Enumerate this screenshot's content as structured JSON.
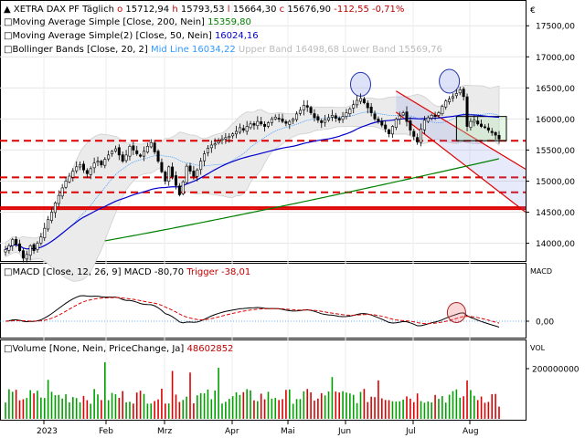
{
  "chart_data": [
    {
      "type": "candlestick",
      "panel": "price",
      "title": "XETRA DAX PF",
      "interval": "Täglich",
      "currency": "€",
      "ohlc_last": {
        "open_label": "o",
        "open": "15712,94",
        "high_label": "h",
        "high": "15793,53",
        "low_label": "l",
        "low": "15664,30",
        "close_label": "c",
        "close": "15676,90",
        "change": "-112,55",
        "change_pct": "-0,71%"
      },
      "legend": [
        {
          "name": "Moving Average Simple",
          "params": "[Close, 200, Nein]",
          "value": "15359,80",
          "color": "#008000"
        },
        {
          "name": "Moving Average Simple(2)",
          "params": "[Close, 50, Nein]",
          "value": "16024,16",
          "color": "#0000cc"
        },
        {
          "name": "Bollinger Bands",
          "params": "[Close, 20, 2]",
          "mid_label": "Mid Line",
          "mid": "16034,22",
          "upper_label": "Upper Band",
          "upper": "16498,68",
          "lower_label": "Lower Band",
          "lower": "15569,76",
          "color": "#3399ff"
        }
      ],
      "y_ticks": [
        "17500,00",
        "17000,00",
        "16500,00",
        "16000,00",
        "15500,00",
        "15000,00",
        "14500,00",
        "14000,00"
      ],
      "ylim": [
        13700,
        17900
      ],
      "x_labels": [
        "2023",
        "Feb",
        "Mrz",
        "Apr",
        "Mai",
        "Jun",
        "Jul",
        "Aug"
      ],
      "closes": [
        13900,
        13960,
        14060,
        13980,
        13880,
        13760,
        13820,
        13960,
        13880,
        14000,
        14100,
        14240,
        14380,
        14500,
        14650,
        14770,
        14890,
        15000,
        15080,
        15160,
        15230,
        15260,
        15180,
        15120,
        15200,
        15290,
        15320,
        15260,
        15350,
        15420,
        15480,
        15520,
        15420,
        15320,
        15420,
        15560,
        15500,
        15440,
        15400,
        15480,
        15560,
        15620,
        15470,
        15320,
        15150,
        15000,
        15230,
        15070,
        14930,
        14780,
        14990,
        15240,
        15160,
        15080,
        15180,
        15320,
        15440,
        15530,
        15580,
        15600,
        15640,
        15680,
        15700,
        15720,
        15760,
        15800,
        15860,
        15820,
        15880,
        15920,
        15900,
        15960,
        15920,
        15880,
        15940,
        16000,
        16030,
        16000,
        15960,
        15930,
        15960,
        16000,
        16080,
        16140,
        16220,
        16190,
        16100,
        16020,
        15980,
        15940,
        15990,
        16020,
        16060,
        16010,
        15980,
        16040,
        16100,
        16160,
        16230,
        16300,
        16330,
        16260,
        16180,
        16100,
        16000,
        15960,
        15900,
        15840,
        15760,
        15880,
        16000,
        16050,
        16100,
        15960,
        15820,
        15720,
        15630,
        15840,
        15980,
        16020,
        16060,
        16040,
        16100,
        16200,
        16290,
        16320,
        16360,
        16410,
        16470,
        16360,
        15880,
        15960,
        15980,
        15920,
        15880,
        15860,
        15820,
        15780,
        15740,
        15677
      ],
      "support_lines": [
        15650,
        15060,
        14820,
        14580,
        14550
      ],
      "channel": {
        "upper": [
          [
            110,
            16450
          ],
          [
            139,
            15450
          ]
        ],
        "lower": [
          [
            110,
            16110
          ],
          [
            139,
            14830
          ]
        ]
      },
      "range_box": {
        "x": [
          127,
          139
        ],
        "y": [
          15650,
          16040
        ]
      }
    },
    {
      "type": "line",
      "panel": "macd",
      "title": "MACD",
      "params": "[Close, 12, 26, 9]",
      "macd_label": "MACD",
      "macd_value": "-80,70",
      "trigger_label": "Trigger",
      "trigger_value": "-38,01",
      "axis_label": "MACD",
      "y_ticks": [
        "0,00"
      ]
    },
    {
      "type": "bar",
      "panel": "volume",
      "title": "Volume",
      "params": "[None, Nein, PriceChange, Ja]",
      "value": "48602852",
      "axis_label": "VOL",
      "y_ticks": [
        "200000000"
      ]
    }
  ]
}
